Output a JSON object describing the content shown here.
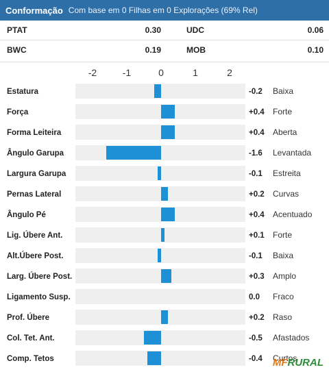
{
  "header": {
    "title": "Conformação",
    "subtitle": "Com base em 0 Filhas em 0 Explorações (69% Rel)"
  },
  "indices": [
    {
      "label1": "PTAT",
      "value1": "0.30",
      "label2": "UDC",
      "value2": "0.06"
    },
    {
      "label1": "BWC",
      "value1": "0.19",
      "label2": "MOB",
      "value2": "0.10"
    }
  ],
  "colors": {
    "bar": "#1e90d6",
    "row_bg": "#efefef",
    "header": "#2f6fa8"
  },
  "chart_data": {
    "type": "bar",
    "orientation": "horizontal",
    "x_ticks": [
      "-2",
      "-1",
      "0",
      "1",
      "2"
    ],
    "xlim": [
      -2,
      2
    ],
    "categories": [
      "Estatura",
      "Força",
      "Forma Leiteira",
      "Ângulo Garupa",
      "Largura Garupa",
      "Pernas Lateral",
      "Ângulo Pé",
      "Lig. Úbere Ant.",
      "Alt.Úbere Post.",
      "Larg. Úbere Post.",
      "Ligamento Susp.",
      "Prof. Úbere",
      "Col. Tet. Ant.",
      "Comp. Tetos"
    ],
    "values": [
      -0.2,
      0.4,
      0.4,
      -1.6,
      -0.1,
      0.2,
      0.4,
      0.1,
      -0.1,
      0.3,
      0.0,
      0.2,
      -0.5,
      -0.4
    ],
    "value_labels": [
      "-0.2",
      "+0.4",
      "+0.4",
      "-1.6",
      "-0.1",
      "+0.2",
      "+0.4",
      "+0.1",
      "-0.1",
      "+0.3",
      "0.0",
      "+0.2",
      "-0.5",
      "-0.4"
    ],
    "descriptions": [
      "Baixa",
      "Forte",
      "Aberta",
      "Levantada",
      "Estreita",
      "Curvas",
      "Acentuado",
      "Forte",
      "Baixa",
      "Amplo",
      "Fraco",
      "Raso",
      "Afastados",
      "Curtos"
    ]
  },
  "logo": {
    "part1": "MF",
    "part2": "RURAL"
  }
}
